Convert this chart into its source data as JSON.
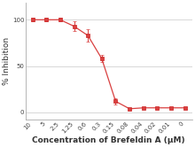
{
  "x_labels": [
    "10",
    "5",
    "2.5",
    "1.25",
    "0.6",
    "0.3",
    "0.15",
    "0.08",
    "0.04",
    "0.02",
    "0.01",
    "0"
  ],
  "x_positions": [
    0,
    1,
    2,
    3,
    4,
    5,
    6,
    7,
    8,
    9,
    10,
    11
  ],
  "y_values": [
    100,
    100,
    100,
    93,
    83,
    58,
    12,
    4,
    5,
    5,
    5,
    5
  ],
  "y_errors": [
    2,
    2,
    2,
    5,
    7,
    4,
    3,
    1,
    1,
    1,
    1,
    1
  ],
  "line_color": "#d94040",
  "marker_color": "#cc2222",
  "marker_face": "#d94040",
  "xlabel": "Concentration of Brefeldin A (μM)",
  "ylabel": "% Inhibition",
  "yticks": [
    0,
    50,
    100
  ],
  "ylim": [
    -8,
    118
  ],
  "background_color": "#ffffff",
  "grid_color": "#c8c8c8",
  "axis_label_fontsize": 6.5,
  "tick_fontsize": 5.0,
  "xlabel_fontsize": 6.5
}
